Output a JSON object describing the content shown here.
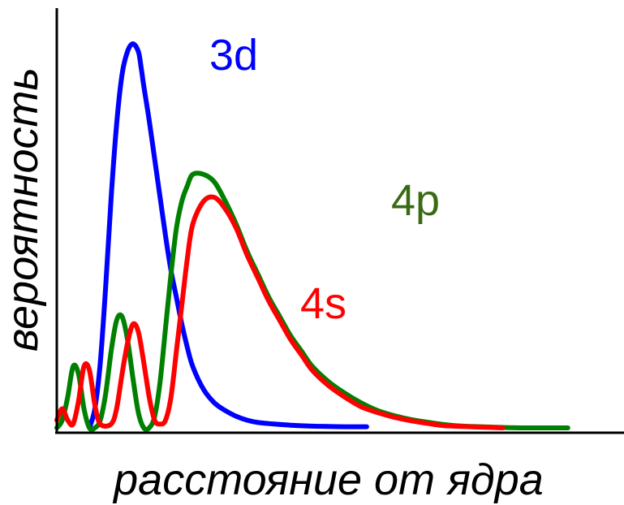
{
  "chart_data": {
    "type": "line",
    "xlabel": "расстояние от ядра",
    "ylabel": "вероятность",
    "xlim": [
      0,
      1
    ],
    "ylim": [
      0,
      1
    ],
    "grid": false,
    "legend": "inline labels near curves",
    "series": [
      {
        "name": "3d",
        "color": "#0000ff",
        "x": [
          0.06,
          0.07,
          0.08,
          0.09,
          0.1,
          0.11,
          0.12,
          0.13,
          0.14,
          0.15,
          0.155,
          0.16,
          0.17,
          0.18,
          0.19,
          0.2,
          0.21,
          0.22,
          0.23,
          0.24,
          0.25,
          0.27,
          0.29,
          0.31,
          0.33,
          0.35,
          0.37,
          0.4,
          0.43,
          0.46,
          0.49,
          0.53,
          0.57
        ],
        "y": [
          0.0,
          0.05,
          0.17,
          0.37,
          0.6,
          0.79,
          0.92,
          0.98,
          1.0,
          0.98,
          0.94,
          0.89,
          0.8,
          0.7,
          0.6,
          0.5,
          0.41,
          0.34,
          0.27,
          0.21,
          0.16,
          0.1,
          0.065,
          0.045,
          0.03,
          0.02,
          0.014,
          0.01,
          0.007,
          0.005,
          0.004,
          0.003,
          0.003
        ]
      },
      {
        "name": "4s",
        "color": "#ff0000",
        "x": [
          0.0,
          0.01,
          0.02,
          0.03,
          0.04,
          0.05,
          0.06,
          0.07,
          0.08,
          0.1,
          0.11,
          0.12,
          0.13,
          0.14,
          0.15,
          0.16,
          0.17,
          0.18,
          0.19,
          0.2,
          0.21,
          0.22,
          0.23,
          0.24,
          0.25,
          0.27,
          0.29,
          0.31,
          0.33,
          0.35,
          0.37,
          0.39,
          0.41,
          0.43,
          0.45,
          0.47,
          0.5,
          0.53,
          0.56,
          0.59,
          0.62,
          0.65,
          0.68,
          0.71,
          0.74,
          0.78,
          0.82
        ],
        "y": [
          0.02,
          0.05,
          0.02,
          0.01,
          0.07,
          0.16,
          0.15,
          0.06,
          0.01,
          0.01,
          0.05,
          0.14,
          0.22,
          0.27,
          0.25,
          0.17,
          0.08,
          0.02,
          0.01,
          0.02,
          0.08,
          0.2,
          0.32,
          0.44,
          0.53,
          0.59,
          0.6,
          0.57,
          0.52,
          0.45,
          0.39,
          0.33,
          0.28,
          0.23,
          0.19,
          0.15,
          0.11,
          0.08,
          0.055,
          0.04,
          0.028,
          0.019,
          0.012,
          0.006,
          0.004,
          0.002,
          0.0
        ]
      },
      {
        "name": "4p",
        "color": "#008000",
        "labelColor": "#3a6b13",
        "x": [
          0.0,
          0.01,
          0.02,
          0.03,
          0.04,
          0.05,
          0.06,
          0.07,
          0.08,
          0.09,
          0.1,
          0.11,
          0.12,
          0.13,
          0.14,
          0.15,
          0.16,
          0.17,
          0.18,
          0.19,
          0.2,
          0.21,
          0.22,
          0.23,
          0.24,
          0.25,
          0.27,
          0.29,
          0.31,
          0.33,
          0.35,
          0.37,
          0.39,
          0.41,
          0.43,
          0.45,
          0.47,
          0.5,
          0.53,
          0.56,
          0.59,
          0.62,
          0.65,
          0.68,
          0.71,
          0.74,
          0.78,
          0.82,
          0.86,
          0.94
        ],
        "y": [
          0.0,
          0.02,
          0.08,
          0.16,
          0.14,
          0.05,
          0.0,
          0.0,
          0.02,
          0.09,
          0.2,
          0.28,
          0.29,
          0.23,
          0.13,
          0.04,
          0.0,
          0.0,
          0.03,
          0.12,
          0.26,
          0.4,
          0.52,
          0.59,
          0.63,
          0.66,
          0.66,
          0.64,
          0.59,
          0.53,
          0.46,
          0.4,
          0.34,
          0.29,
          0.24,
          0.2,
          0.16,
          0.12,
          0.09,
          0.065,
          0.045,
          0.032,
          0.022,
          0.015,
          0.009,
          0.005,
          0.003,
          0.001,
          0.0,
          0.0
        ]
      }
    ]
  }
}
